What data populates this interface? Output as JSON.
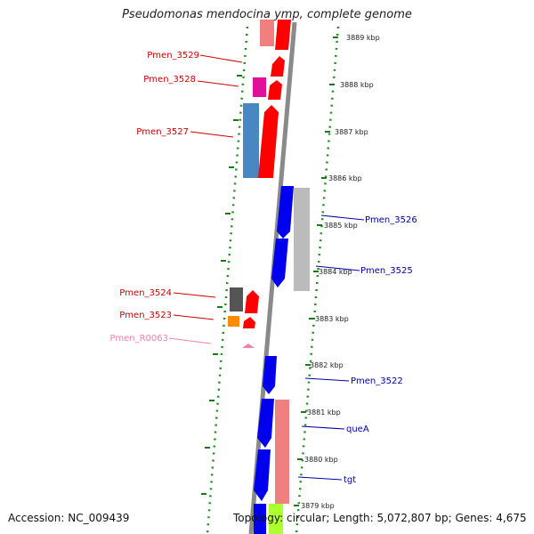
{
  "title": "Pseudomonas mendocina ymp, complete genome",
  "accession": "Accession: NC_009439",
  "topology": "Topology: circular; Length: 5,072,807 bp; Genes: 4,675",
  "ruler": [
    "3889 kbp",
    "3888 kbp",
    "3887 kbp",
    "3886 kbp",
    "3885 kbp",
    "3884 kbp",
    "3883 kbp",
    "3882 kbp",
    "3881 kbp",
    "3880 kbp",
    "3879 kbp"
  ],
  "left_labels": [
    {
      "text": "Pmen_3529",
      "color": "#cc0000"
    },
    {
      "text": "Pmen_3528",
      "color": "#cc0000"
    },
    {
      "text": "Pmen_3527",
      "color": "#cc0000"
    },
    {
      "text": "Pmen_3524",
      "color": "#cc0000"
    },
    {
      "text": "Pmen_3523",
      "color": "#cc0000"
    },
    {
      "text": "Pmen_R0063",
      "color": "#f080b0"
    }
  ],
  "right_labels": [
    {
      "text": "Pmen_3526",
      "color": "#0000aa"
    },
    {
      "text": "Pmen_3525",
      "color": "#0000aa"
    },
    {
      "text": "Pmen_3522",
      "color": "#0000aa"
    },
    {
      "text": "queA",
      "color": "#0000aa"
    },
    {
      "text": "tgt",
      "color": "#0000aa"
    }
  ]
}
